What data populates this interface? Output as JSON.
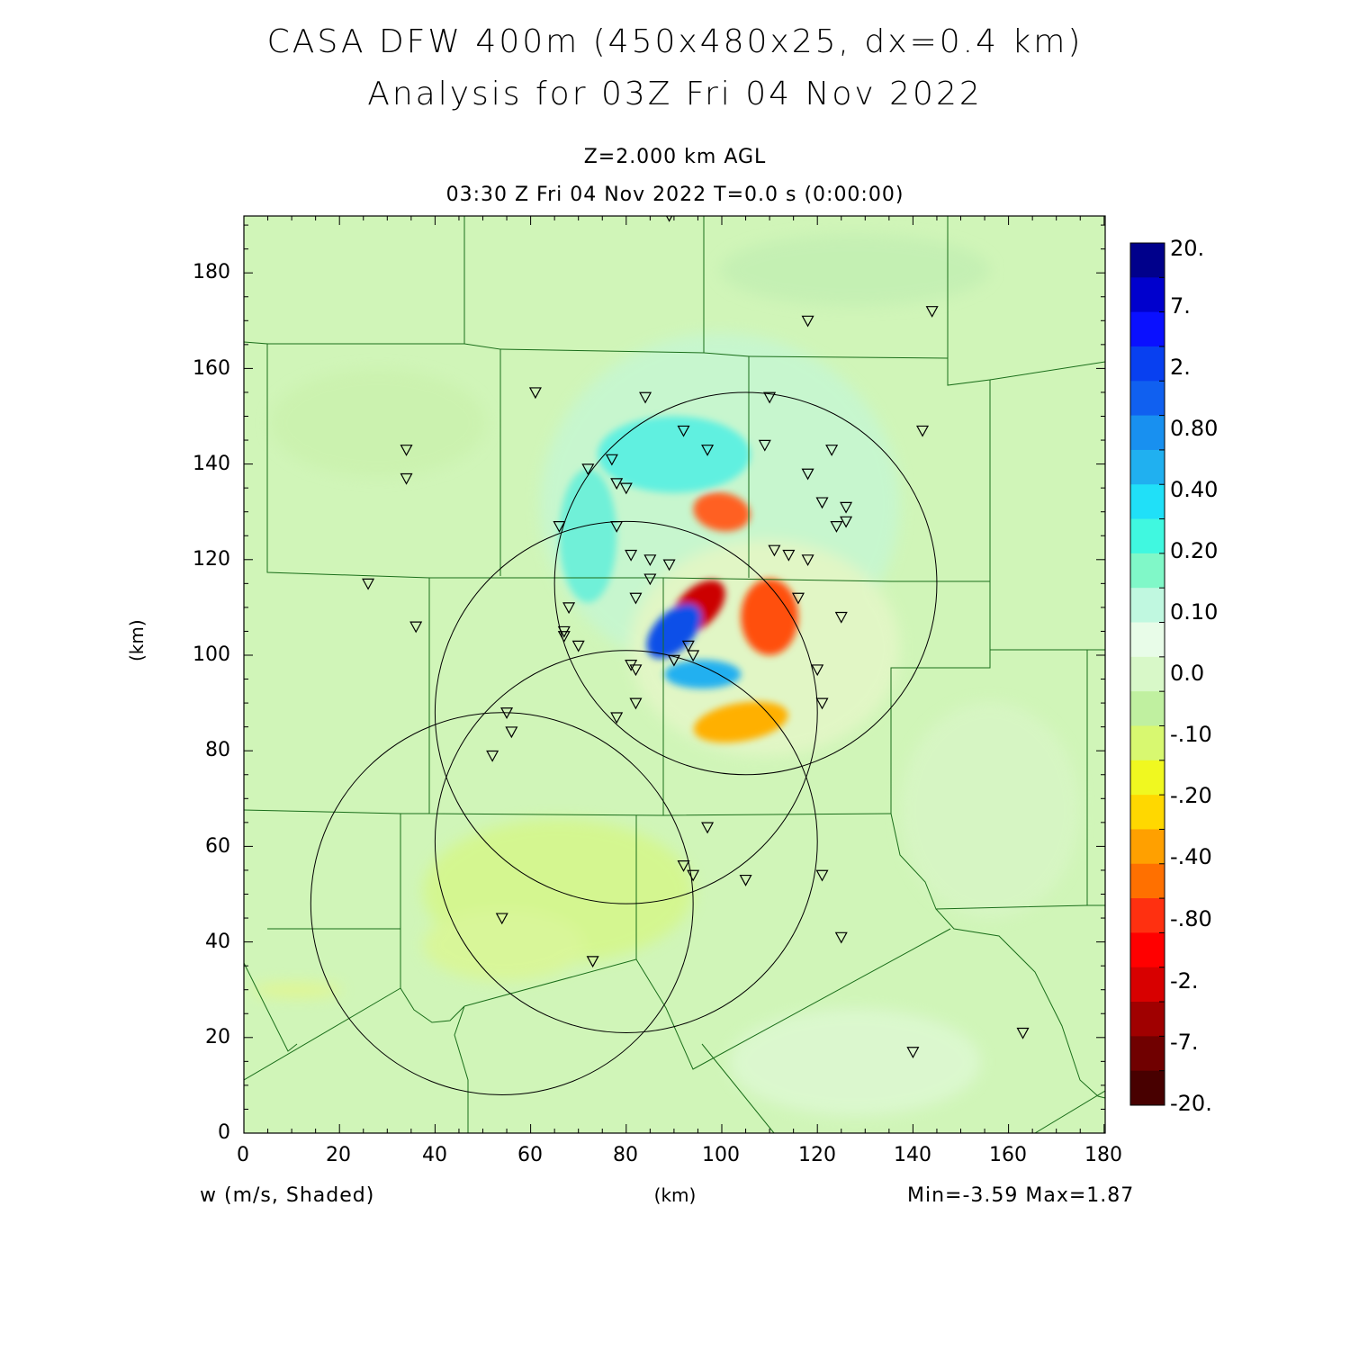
{
  "title_line1": "CASA DFW 400m (450x480x25, dx=0.4 km)",
  "title_line2": "Analysis for 03Z Fri 04 Nov 2022",
  "subtitle_line1": "Z=2.000 km AGL",
  "subtitle_line2": "03:30 Z Fri 04 Nov 2022    T=0.0 s (0:00:00)",
  "field_label": "w (m/s, Shaded)",
  "x_axis_label": "(km)",
  "y_axis_label": "(km)",
  "minmax_text": "Min=-3.59 Max=1.87",
  "axes": {
    "x_ticks": [
      "0",
      "20",
      "40",
      "60",
      "80",
      "100",
      "120",
      "140",
      "160",
      "180"
    ],
    "y_ticks": [
      "0",
      "20",
      "40",
      "60",
      "80",
      "100",
      "120",
      "140",
      "160",
      "180"
    ],
    "x_range_km": [
      0,
      180
    ],
    "y_range_km": [
      0,
      192
    ]
  },
  "colorbar": {
    "labels": [
      "20.",
      "7.",
      "2.",
      "0.80",
      "0.40",
      "0.20",
      "0.10",
      "0.0",
      "-.10",
      "-.20",
      "-.40",
      "-.80",
      "-2.",
      "-7.",
      "-20."
    ],
    "colors": [
      "#00008b",
      "#0000cd",
      "#0a10ff",
      "#0840f0",
      "#1060f0",
      "#1890f0",
      "#20b0f0",
      "#20e0f8",
      "#40f8e0",
      "#80f8c8",
      "#c0f8e0",
      "#e8fce8",
      "#d8f8c8",
      "#c0f0a0",
      "#d8f870",
      "#f0f820",
      "#ffd800",
      "#ffa000",
      "#ff7000",
      "#ff3010",
      "#ff0000",
      "#d80000",
      "#a00000",
      "#700000",
      "#480000"
    ]
  },
  "map": {
    "background_color": "#d0f5b8",
    "radar_rings_km": [
      {
        "center": [
          105,
          115
        ],
        "radius": 40
      },
      {
        "center": [
          80,
          88
        ],
        "radius": 40
      },
      {
        "center": [
          80,
          61
        ],
        "radius": 40
      },
      {
        "center": [
          54,
          48
        ],
        "radius": 40
      }
    ],
    "stations_km": [
      [
        89,
        192
      ],
      [
        118,
        170
      ],
      [
        144,
        172
      ],
      [
        61,
        155
      ],
      [
        84,
        154
      ],
      [
        110,
        154
      ],
      [
        142,
        147
      ],
      [
        92,
        147
      ],
      [
        34,
        143
      ],
      [
        34,
        137
      ],
      [
        97,
        143
      ],
      [
        109,
        144
      ],
      [
        123,
        143
      ],
      [
        77,
        141
      ],
      [
        72,
        139
      ],
      [
        78,
        136
      ],
      [
        80,
        135
      ],
      [
        118,
        138
      ],
      [
        121,
        132
      ],
      [
        126,
        131
      ],
      [
        126,
        128
      ],
      [
        124,
        127
      ],
      [
        66,
        127
      ],
      [
        78,
        127
      ],
      [
        81,
        121
      ],
      [
        111,
        122
      ],
      [
        114,
        121
      ],
      [
        118,
        120
      ],
      [
        85,
        120
      ],
      [
        89,
        119
      ],
      [
        26,
        115
      ],
      [
        85,
        116
      ],
      [
        82,
        112
      ],
      [
        116,
        112
      ],
      [
        68,
        110
      ],
      [
        125,
        108
      ],
      [
        36,
        106
      ],
      [
        67,
        105
      ],
      [
        67,
        104
      ],
      [
        70,
        102
      ],
      [
        93,
        102
      ],
      [
        94,
        100
      ],
      [
        90,
        99
      ],
      [
        81,
        98
      ],
      [
        82,
        97
      ],
      [
        120,
        97
      ],
      [
        82,
        90
      ],
      [
        121,
        90
      ],
      [
        78,
        87
      ],
      [
        55,
        88
      ],
      [
        56,
        84
      ],
      [
        52,
        79
      ],
      [
        97,
        64
      ],
      [
        92,
        56
      ],
      [
        94,
        54
      ],
      [
        121,
        54
      ],
      [
        105,
        53
      ],
      [
        54,
        45
      ],
      [
        125,
        41
      ],
      [
        73,
        36
      ],
      [
        140,
        17
      ],
      [
        163,
        21
      ]
    ],
    "anomalies_km": [
      {
        "center": [
          95,
          110
        ],
        "rx": 7,
        "ry": 4,
        "angle": -45,
        "value": -3.59,
        "color": "#cc0000"
      },
      {
        "center": [
          90,
          105
        ],
        "rx": 7,
        "ry": 4,
        "angle": -45,
        "value": 1.87,
        "color": "#1050e8"
      },
      {
        "center": [
          100,
          130
        ],
        "rx": 6,
        "ry": 4,
        "angle": 10,
        "value": -0.8,
        "color": "#ff6020"
      },
      {
        "center": [
          110,
          108
        ],
        "rx": 6,
        "ry": 8,
        "angle": 0,
        "value": -0.8,
        "color": "#ff5010"
      },
      {
        "center": [
          104,
          86
        ],
        "rx": 10,
        "ry": 4,
        "angle": -10,
        "value": -0.3,
        "color": "#ffb000"
      },
      {
        "center": [
          96,
          96
        ],
        "rx": 8,
        "ry": 3,
        "angle": 0,
        "value": 0.5,
        "color": "#20b0f0"
      },
      {
        "center": [
          90,
          142
        ],
        "rx": 16,
        "ry": 8,
        "angle": 0,
        "value": 0.2,
        "color": "#60f0e0"
      },
      {
        "center": [
          72,
          125
        ],
        "rx": 6,
        "ry": 14,
        "angle": 0,
        "value": 0.2,
        "color": "#70f0d8"
      }
    ]
  },
  "colors": {
    "county_lines": "#1a6e1a",
    "rings": "#000000",
    "frame": "#000000"
  }
}
